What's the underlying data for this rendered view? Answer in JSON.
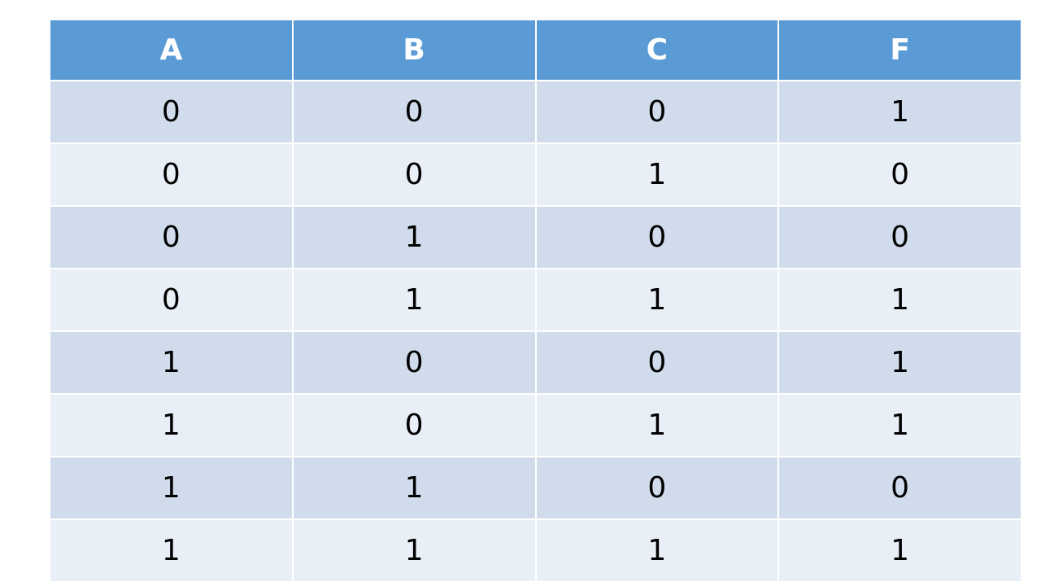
{
  "table": {
    "header": [
      "A",
      "B",
      "C",
      "F"
    ],
    "rows": [
      [
        0,
        0,
        0,
        1
      ],
      [
        0,
        0,
        1,
        0
      ],
      [
        0,
        1,
        0,
        0
      ],
      [
        0,
        1,
        1,
        1
      ],
      [
        1,
        0,
        0,
        1
      ],
      [
        1,
        0,
        1,
        1
      ],
      [
        1,
        1,
        0,
        0
      ],
      [
        1,
        1,
        1,
        1
      ]
    ]
  }
}
